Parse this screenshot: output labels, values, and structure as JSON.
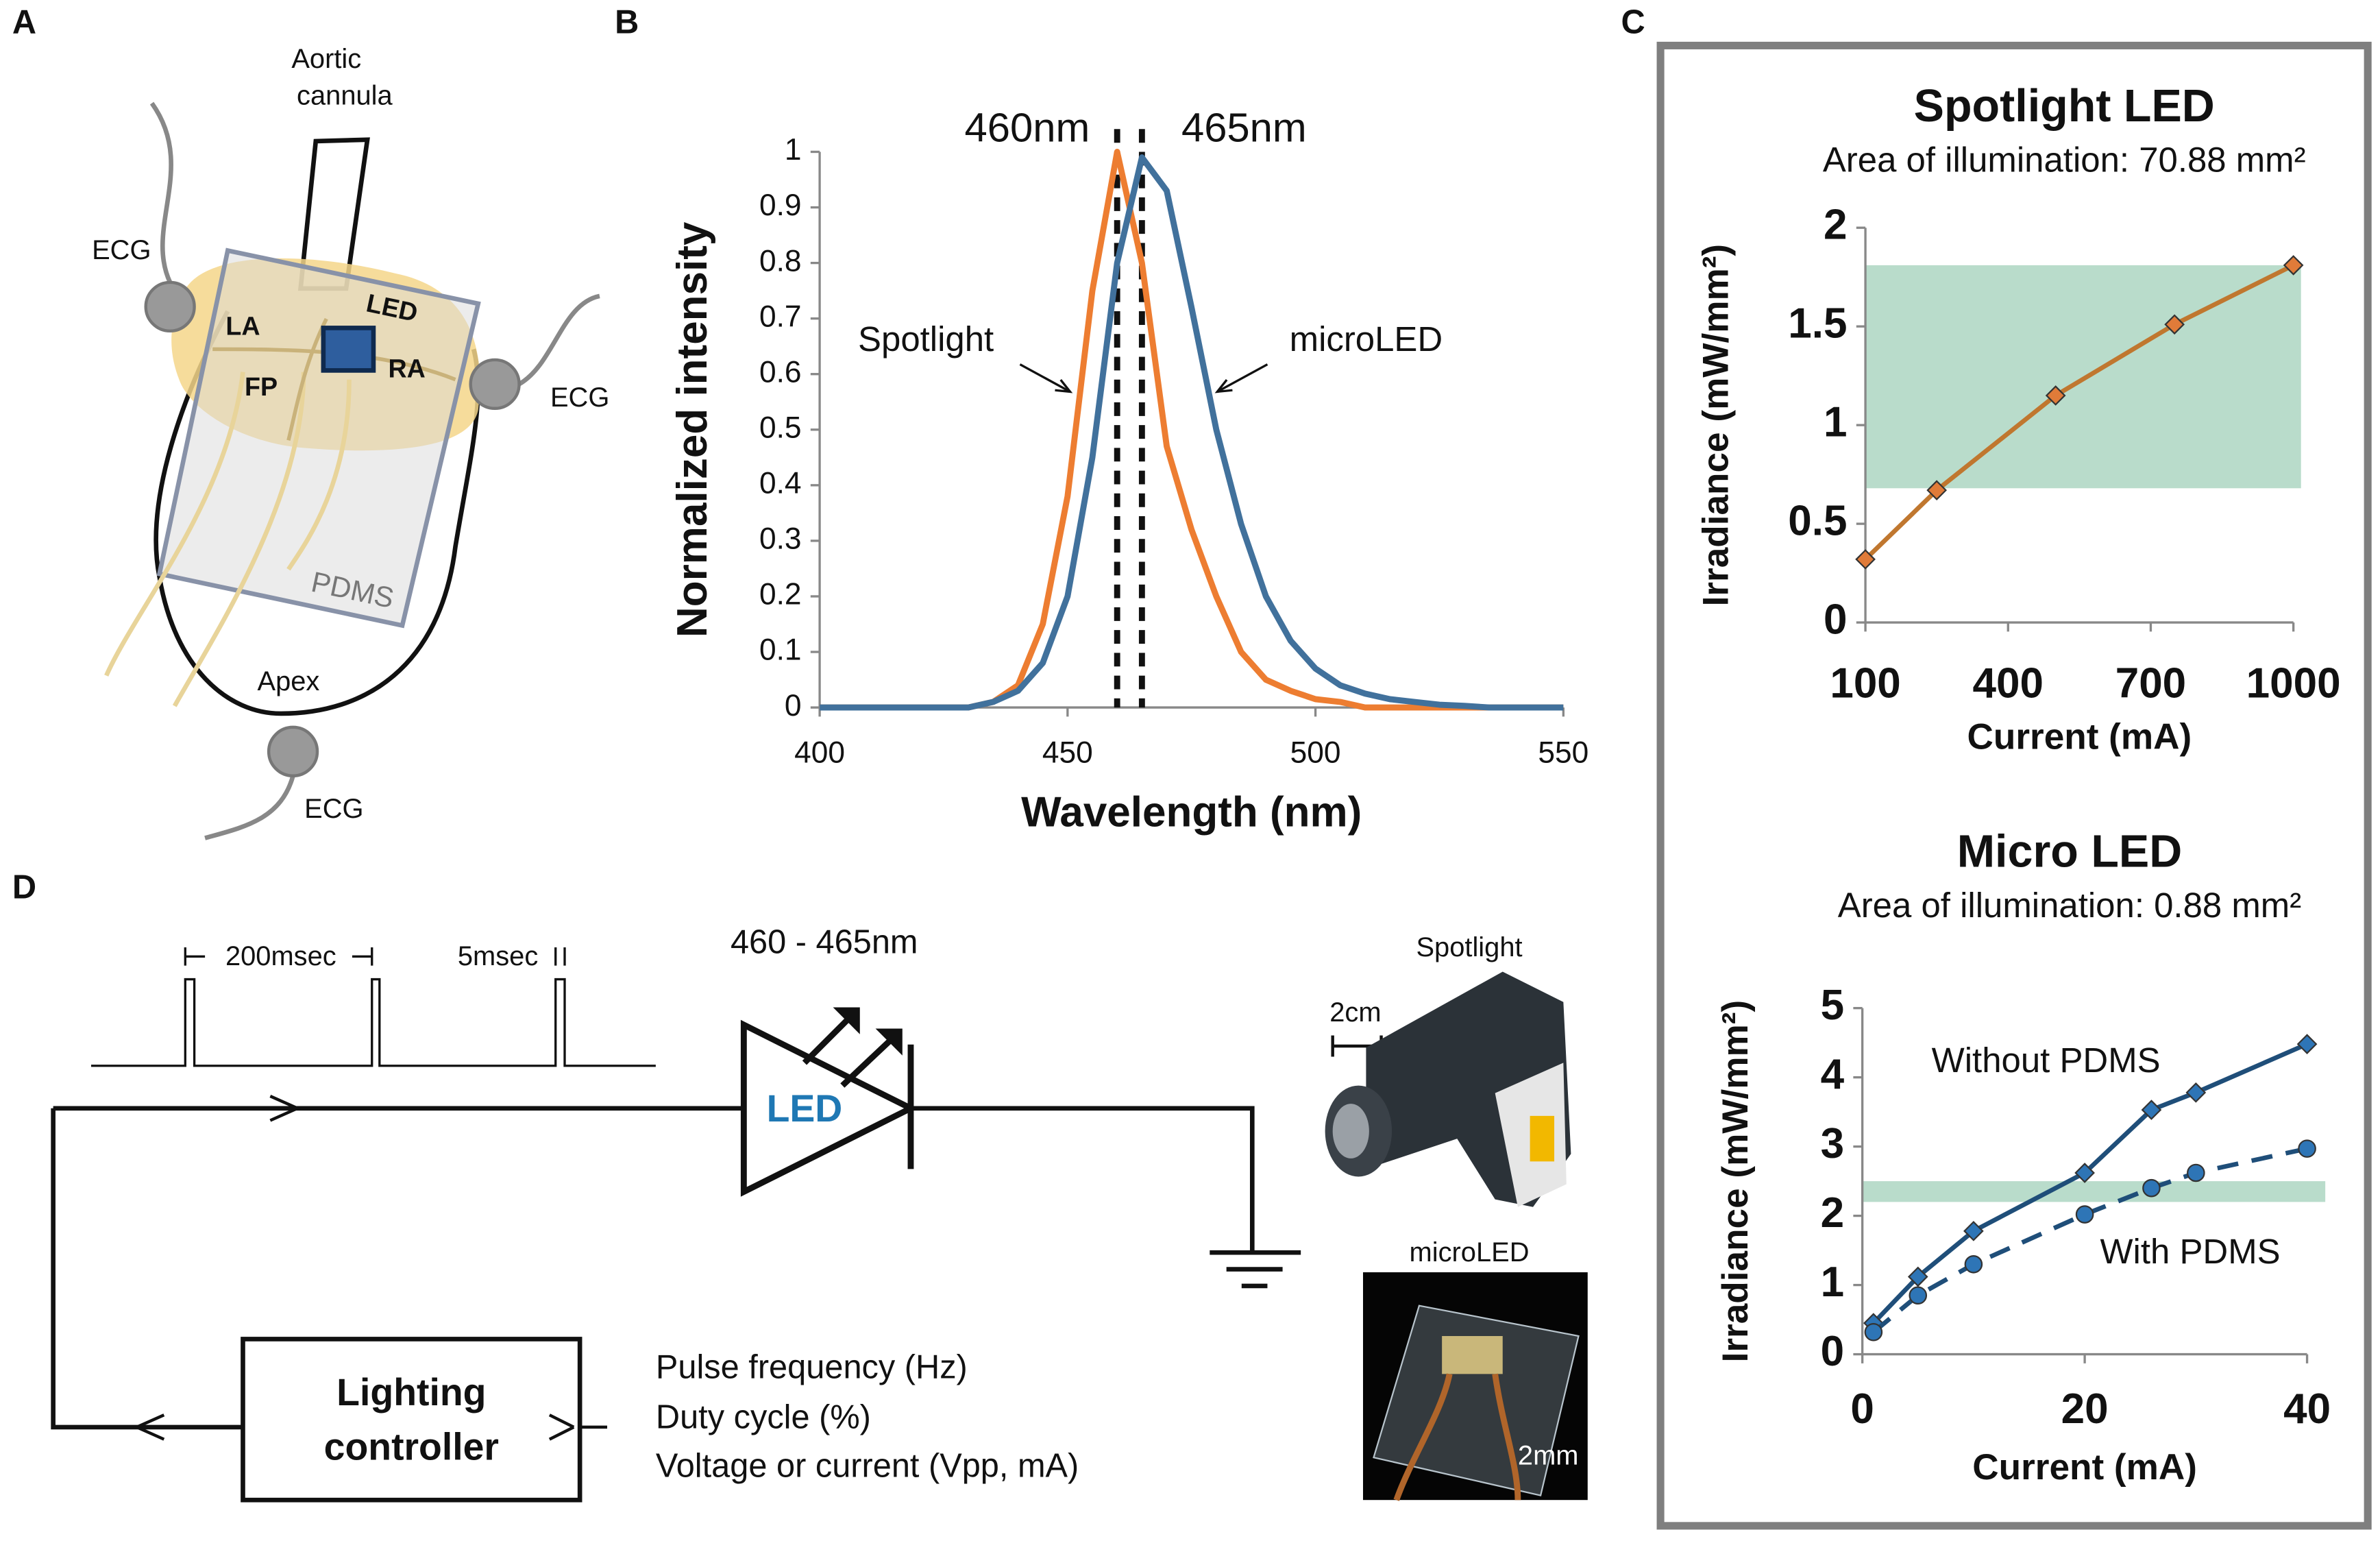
{
  "panel_labels": [
    "A",
    "B",
    "C",
    "D"
  ],
  "heart": {
    "cannula": [
      "Aortic",
      "cannula"
    ],
    "ecg": [
      "ECG",
      "ECG",
      "ECG"
    ],
    "regions": [
      "LA",
      "LED",
      "RA",
      "FP"
    ],
    "pdms": "PDMS",
    "apex": "Apex"
  },
  "circuit": {
    "period": "200msec",
    "width": "5msec",
    "wavelength": "460 - 465nm",
    "led": "LED",
    "controller": [
      "Lighting",
      "controller"
    ],
    "inputs": [
      "Pulse frequency (Hz)",
      "Duty cycle (%)",
      "Voltage or current (Vpp, mA)"
    ],
    "photos": [
      {
        "title": "Spotlight",
        "scale": "2cm"
      },
      {
        "title": "microLED",
        "scale": "2mm"
      }
    ]
  },
  "chart_data": [
    {
      "type": "line",
      "xlabel": "Wavelength (nm)",
      "ylabel": "Normalized intensity",
      "x": [
        400,
        405,
        410,
        415,
        420,
        425,
        430,
        435,
        440,
        445,
        450,
        455,
        460,
        465,
        470,
        475,
        480,
        485,
        490,
        495,
        500,
        505,
        510,
        515,
        520,
        525,
        530,
        535,
        540,
        545,
        550
      ],
      "series": [
        {
          "name": "Spotlight",
          "color": "#ed7d31",
          "values": [
            0,
            0,
            0,
            0,
            0,
            0,
            0,
            0.01,
            0.04,
            0.15,
            0.38,
            0.75,
            1,
            0.8,
            0.47,
            0.32,
            0.2,
            0.1,
            0.05,
            0.03,
            0.015,
            0.01,
            0,
            0,
            0,
            0,
            0,
            0,
            0,
            0,
            0
          ]
        },
        {
          "name": "microLED",
          "color": "#41719c",
          "values": [
            0,
            0,
            0,
            0,
            0,
            0,
            0,
            0.01,
            0.03,
            0.08,
            0.2,
            0.45,
            0.8,
            0.99,
            0.93,
            0.72,
            0.5,
            0.33,
            0.2,
            0.12,
            0.07,
            0.04,
            0.025,
            0.015,
            0.01,
            0.005,
            0.003,
            0,
            0,
            0,
            0
          ]
        }
      ],
      "reference_lines": [
        {
          "x": 460,
          "label": "460nm"
        },
        {
          "x": 465,
          "label": "465nm"
        }
      ],
      "xlim": [
        400,
        550
      ],
      "xticks": [
        400,
        450,
        500,
        550
      ],
      "ylim": [
        0,
        1
      ],
      "yticks": [
        0,
        0.1,
        0.2,
        0.3,
        0.4,
        0.5,
        0.6,
        0.7,
        0.8,
        0.9,
        1
      ]
    },
    {
      "type": "line",
      "title": "Spotlight LED",
      "subtitle": "Area of illumination: 70.88 mm²",
      "xlabel": "Current (mA)",
      "ylabel": "Irradiance (mW/mm²)",
      "x": [
        100,
        250,
        500,
        750,
        1000
      ],
      "series": [
        {
          "name": "Spotlight LED",
          "color": "#c0772f",
          "marker": "diamond",
          "marker_color": "#e07b39",
          "values": [
            0.32,
            0.67,
            1.15,
            1.51,
            1.81
          ]
        }
      ],
      "bands": [
        {
          "from": 0.68,
          "to": 1.81,
          "color": "#b9dccb"
        }
      ],
      "xlim": [
        100,
        1000
      ],
      "xticks": [
        100,
        400,
        700,
        1000
      ],
      "ylim": [
        0,
        2
      ],
      "yticks": [
        0,
        0.5,
        1,
        1.5,
        2
      ]
    },
    {
      "type": "line",
      "title": "Micro LED",
      "subtitle": "Area of illumination: 0.88 mm²",
      "xlabel": "Current (mA)",
      "ylabel": "Irradiance (mW/mm²)",
      "x": [
        1,
        5,
        10,
        20,
        26,
        30,
        40
      ],
      "series": [
        {
          "name": "Without PDMS",
          "color": "#1f4e79",
          "marker": "diamond",
          "marker_color": "#2e75b6",
          "values": [
            0.45,
            1.12,
            1.78,
            2.62,
            3.53,
            3.78,
            4.48
          ]
        },
        {
          "name": "With PDMS",
          "color": "#1f4e79",
          "marker": "circle",
          "marker_color": "#2e75b6",
          "dashed": true,
          "values": [
            0.32,
            0.85,
            1.3,
            2.02,
            2.4,
            2.62,
            2.97
          ]
        }
      ],
      "bands": [
        {
          "from": 2.2,
          "to": 2.5,
          "color": "#b9dccb"
        }
      ],
      "xlim": [
        0,
        40
      ],
      "xticks": [
        0,
        20,
        40
      ],
      "ylim": [
        0,
        5
      ],
      "yticks": [
        0,
        1,
        2,
        3,
        4,
        5
      ]
    }
  ]
}
